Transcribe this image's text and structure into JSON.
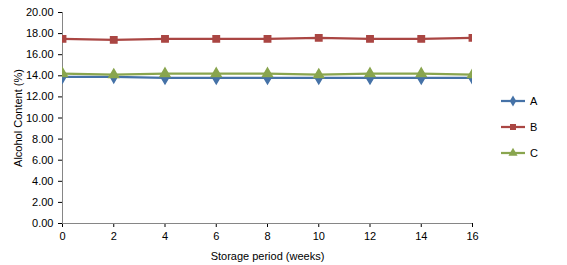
{
  "chart_data": {
    "type": "line",
    "x_label": "Storage period (weeks)",
    "y_label": "Alcohol Content (%)",
    "x": [
      0,
      2,
      4,
      6,
      8,
      10,
      12,
      14,
      16
    ],
    "series": [
      {
        "name": "A",
        "color": "#4572a7",
        "marker": "diamond",
        "values": [
          13.9,
          13.9,
          13.8,
          13.8,
          13.8,
          13.8,
          13.8,
          13.8,
          13.8
        ]
      },
      {
        "name": "B",
        "color": "#aa4643",
        "marker": "square",
        "values": [
          17.5,
          17.4,
          17.5,
          17.5,
          17.5,
          17.6,
          17.5,
          17.5,
          17.6
        ]
      },
      {
        "name": "C",
        "color": "#89a54e",
        "marker": "triangle",
        "values": [
          14.2,
          14.1,
          14.2,
          14.2,
          14.2,
          14.1,
          14.2,
          14.2,
          14.1
        ]
      }
    ],
    "xlim": [
      0,
      16
    ],
    "xticks": [
      0,
      2,
      4,
      6,
      8,
      10,
      12,
      14,
      16
    ],
    "ylim": [
      0,
      20
    ],
    "yticks": [
      {
        "value": 0,
        "label": "0.00"
      },
      {
        "value": 2,
        "label": "2.00"
      },
      {
        "value": 4,
        "label": "4.00"
      },
      {
        "value": 6,
        "label": "6.00"
      },
      {
        "value": 8,
        "label": "8.00"
      },
      {
        "value": 10,
        "label": "10.00"
      },
      {
        "value": 12,
        "label": "12.00"
      },
      {
        "value": 14,
        "label": "14.00"
      },
      {
        "value": 16,
        "label": "16.00"
      },
      {
        "value": 18,
        "label": "18.00"
      },
      {
        "value": 20,
        "label": "20.00"
      }
    ],
    "grid": false,
    "legend": "right"
  }
}
